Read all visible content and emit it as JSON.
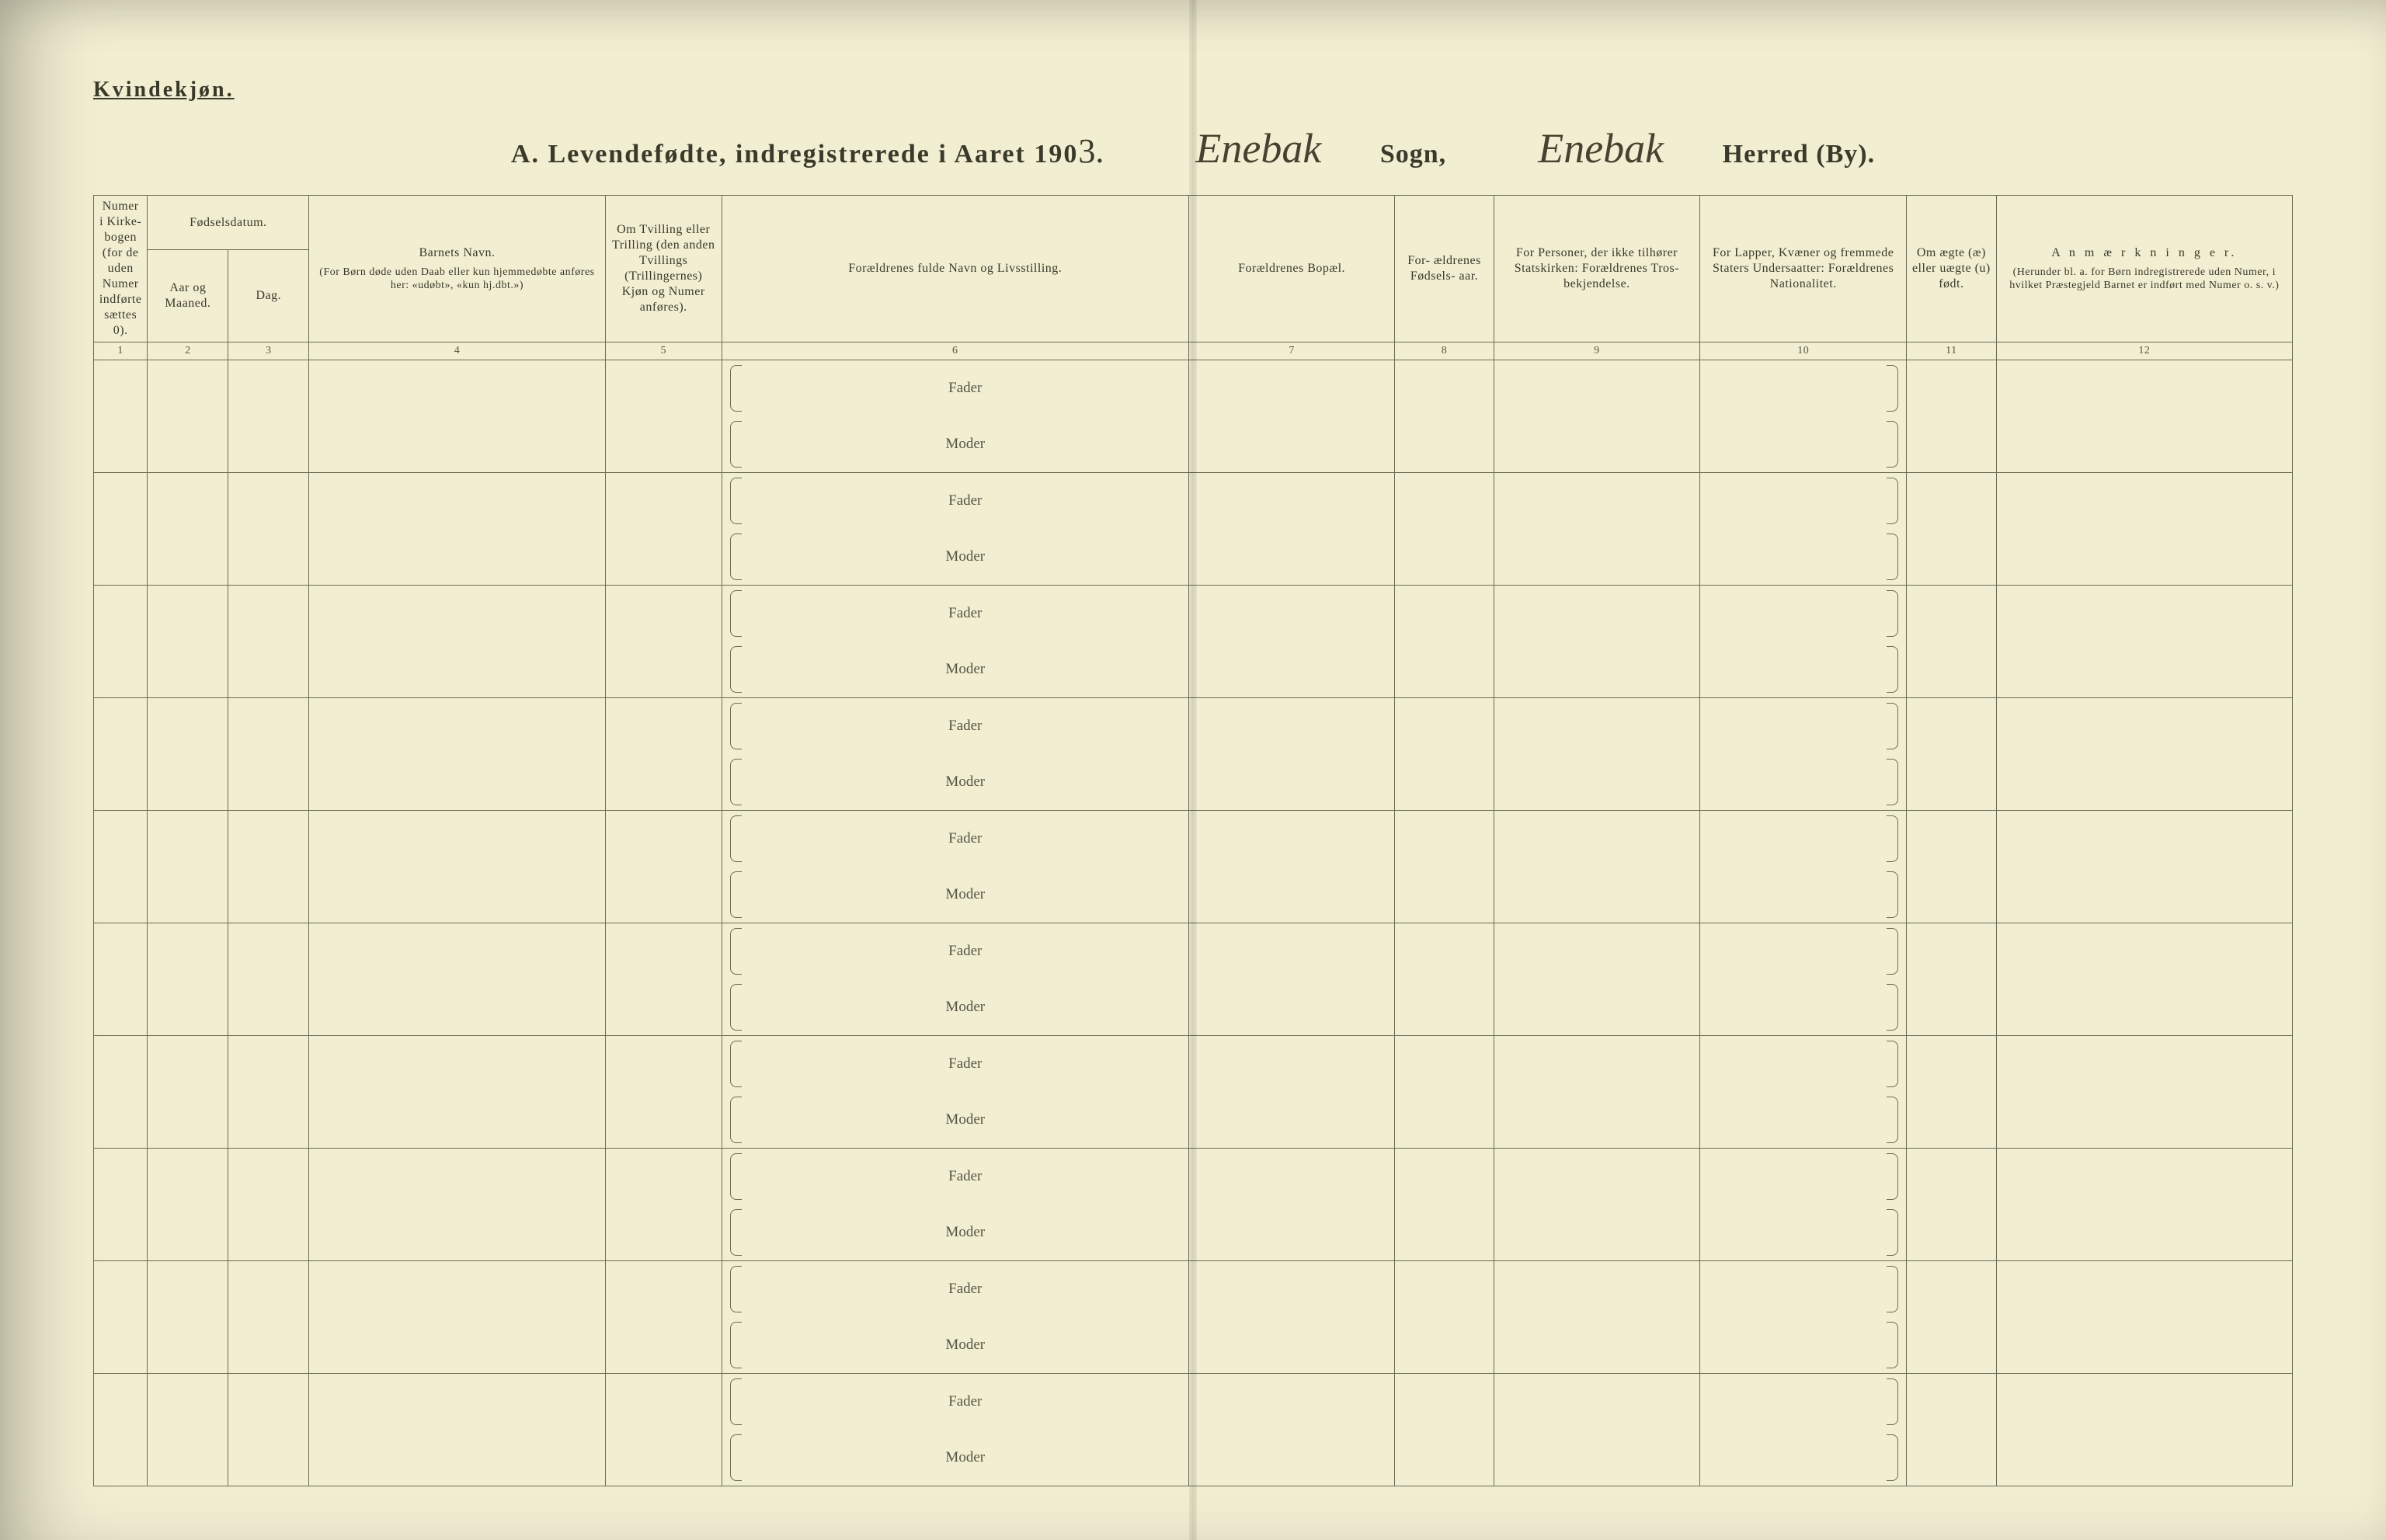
{
  "page": {
    "gender_label": "Kvindekjøn.",
    "title_prefix": "A.  Levendefødte, indregistrerede i Aaret 190",
    "year_suffix": "3.",
    "sogn_handwritten": "Enebak",
    "sogn_label": "Sogn,",
    "herred_handwritten": "Enebak",
    "herred_label": "Herred (By)."
  },
  "columns": {
    "c1": {
      "num": "1",
      "header": "Numer i Kirke- bogen (for de uden Numer indførte sættes 0)."
    },
    "c2_group": "Fødselsdatum.",
    "c2": {
      "num": "2",
      "header": "Aar og Maaned."
    },
    "c3": {
      "num": "3",
      "header": "Dag."
    },
    "c4": {
      "num": "4",
      "header_top": "Barnets Navn.",
      "header_sub": "(For Børn døde uden Daab eller kun hjemmedøbte anføres her: «udøbt», «kun hj.dbt.»)"
    },
    "c5": {
      "num": "5",
      "header": "Om Tvilling eller Trilling (den anden Tvillings (Trillingernes) Kjøn og Numer anføres)."
    },
    "c6": {
      "num": "6",
      "header": "Forældrenes fulde Navn og Livsstilling."
    },
    "c7": {
      "num": "7",
      "header": "Forældrenes Bopæl."
    },
    "c8": {
      "num": "8",
      "header": "For- ældrenes Fødsels- aar."
    },
    "c9": {
      "num": "9",
      "header": "For Personer, der ikke tilhører Statskirken: Forældrenes Tros- bekjendelse."
    },
    "c10": {
      "num": "10",
      "header": "For Lapper, Kvæner og fremmede Staters Undersaatter: Forældrenes Nationalitet."
    },
    "c11": {
      "num": "11",
      "header": "Om ægte (æ) eller uægte (u) født."
    },
    "c12": {
      "num": "12",
      "header_top": "A n m æ r k n i n g e r.",
      "header_sub": "(Herunder bl. a. for Børn indregistrerede uden Numer, i hvilket Præstegjeld Barnet er indført med Numer o. s. v.)"
    }
  },
  "row_labels": {
    "fader": "Fader",
    "moder": "Moder"
  },
  "row_count": 10
}
